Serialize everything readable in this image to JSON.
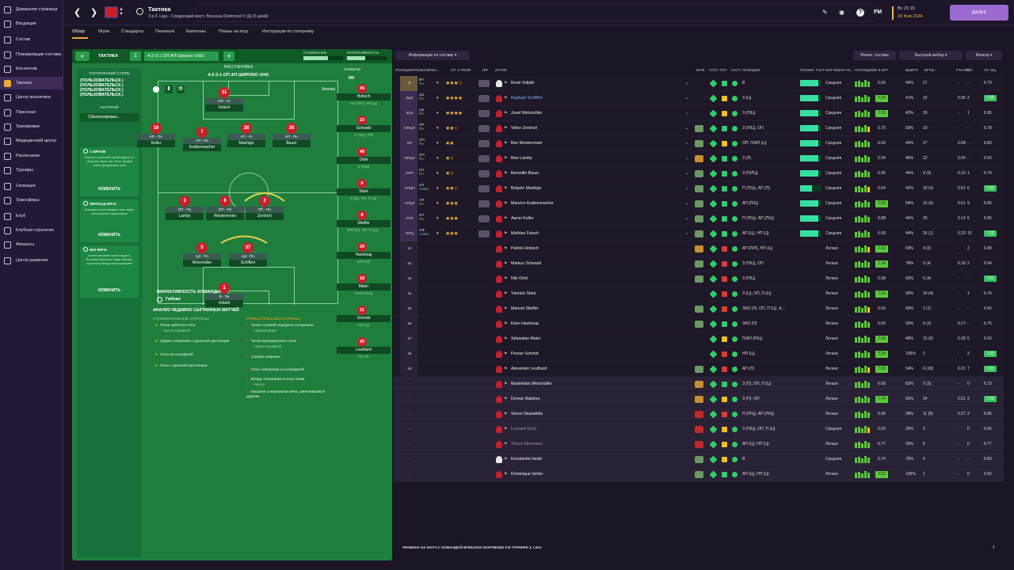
{
  "sidebar": {
    "items": [
      {
        "label": "Домашняя страница",
        "icon": "home-icon"
      },
      {
        "label": "Входящие",
        "icon": "inbox-icon"
      },
      {
        "label": "Состав",
        "icon": "squad-icon"
      },
      {
        "label": "Планировщик состава",
        "icon": "planner-icon"
      },
      {
        "label": "Коллектив",
        "icon": "dynamics-icon"
      },
      {
        "label": "Тактика",
        "icon": "tactics-icon"
      },
      {
        "label": "Центр аналитики",
        "icon": "analytics-icon"
      },
      {
        "label": "Персонал",
        "icon": "staff-icon"
      },
      {
        "label": "Тренировки",
        "icon": "training-icon"
      },
      {
        "label": "Медицинский центр",
        "icon": "medical-icon"
      },
      {
        "label": "Расписание",
        "icon": "schedule-icon"
      },
      {
        "label": "Турниры",
        "icon": "competitions-icon"
      },
      {
        "label": "Селекция",
        "icon": "scouting-icon"
      },
      {
        "label": "Трансферы",
        "icon": "transfers-icon"
      },
      {
        "label": "Клуб",
        "icon": "club-icon"
      },
      {
        "label": "Клубная стратегия",
        "icon": "strategy-icon"
      },
      {
        "label": "Финансы",
        "icon": "finances-icon"
      },
      {
        "label": "Центр развития",
        "icon": "development-icon"
      }
    ]
  },
  "topbar": {
    "title": "Тактика",
    "subtitle": "3 в 3. Liga - Следующий матч: Borussia Dortmund II (Д) (6 дней)",
    "time": "Вс 21:15",
    "date": "18 Фев 2024",
    "continue_label": "ДАЛЕЕ",
    "fm_label": "FM",
    "help_label": "?"
  },
  "subtabs": [
    "Обзор",
    "Игрок",
    "Стандарты",
    "Пенальти",
    "Капитаны",
    "Планы на игру",
    "Инструкции по сопернику"
  ],
  "tactic": {
    "tab_label": "ТАКТИКА",
    "slot": "1",
    "formation": "4-2-3-1 ОП АП Широко UHG",
    "understanding_label": "ПОНИМАНИЕ",
    "intensity_label": "ИНТЕНСИВНОСТЬ",
    "understanding_value": 0.62,
    "intensity_value": 0.45,
    "style_title": "ТАКТИЧЕСКИЙ СТИЛЬ",
    "style_value": "(ПОЛЬЗОВАТЕЛЬСК.) (ПОЛЬЗОВАТЕЛЬСК.) (ПОЛЬЗОВАТЕЛЬСК.) (ПОЛЬЗОВАТЕЛЬСК.)",
    "mentality_title": "НАСТРОЙ",
    "mentality_value": "Сбалансирован...",
    "cards": [
      {
        "title": "С МЯЧОМ",
        "text": "Играть в короткий пас Выходить из обороны через пас Темп: низкий тонее Дисциплины узко",
        "button": "ИЗМЕНИТЬ"
      },
      {
        "title": "ПЕРЕХОД МЯЧА",
        "text": "Выжидать игры Вводить мяч через центральных защитников",
        "button": "ИЗМЕНИТЬ"
      },
      {
        "title": "БЕЗ МЯЧА",
        "text": "Более высокая линия защиты Высокий Прессинг Чаще Мешать короткому вводу мяча вратарём",
        "button": "ИЗМЕНИТЬ"
      }
    ],
    "pitch_header": "РАССТАНОВКА",
    "pitch_formation": "4-2-3-1 ОП АП ШИРОКО UHG",
    "analysis_label": "Анализ",
    "fluidity_label": "ВАРИАТИВНОСТЬ КОМАНДЫ",
    "fluidity_value": "Гибкая",
    "recent_label": "АНАЛИЗ НЕДАВНО СЫГРАННЫХ МАТЧЕЙ",
    "positives_title": "ПОЛОЖИТЕЛЬНЫЕ СТОРОНЫ",
    "negatives_title": "ОТРИЦАТЕЛЬНЫЕ СТОРОНЫ",
    "positives": [
      {
        "text": "Точка забитого гола",
        "sub": "- Центр штрафной"
      },
      {
        "text": "Удары соперника с дальней дистанции",
        "sub": ""
      },
      {
        "text": "Голы из штрафной",
        "sub": ""
      },
      {
        "text": "Голы с дальней дистанции",
        "sub": ""
      }
    ],
    "negatives": [
      {
        "text": "Точка голевой передачи соперника",
        "sub": "- Правый фланг"
      },
      {
        "text": "Точка пропущенного гола",
        "sub": "- Центр штрафной"
      },
      {
        "text": "Слабое влияние",
        "sub": ""
      },
      {
        "text": "Голы соперника из штрафной",
        "sub": ""
      },
      {
        "text": "Входы соперника в зону атаки",
        "sub": "- Центр"
      },
      {
        "text": "Касания соперником мяча, увенчавшиеся ударом",
        "sub": ""
      }
    ],
    "pitch_players": [
      {
        "num": "11",
        "role": "ОФ - Ат",
        "name": "Fetsch"
      },
      {
        "num": "16",
        "role": "КП - Пн",
        "name": "Keller"
      },
      {
        "num": "7",
        "role": "АП - Пн",
        "name": "Krattenmacher"
      },
      {
        "num": "38",
        "role": "АП - Ат",
        "name": "Mashigo"
      },
      {
        "num": "26",
        "role": "КП - Пн",
        "name": "Bauer"
      },
      {
        "num": "3",
        "role": "ОП - Пн",
        "name": "Lamby"
      },
      {
        "num": "6",
        "role": "ОП - Пн",
        "name": "Westermeier"
      },
      {
        "num": "2",
        "role": "ПР - Пн",
        "name": "Zentrich"
      },
      {
        "num": "5",
        "role": "ЦЗ - Пн",
        "name": "Welzmüller"
      },
      {
        "num": "37",
        "role": "ЦЗ - Пн",
        "name": "Schiffert"
      },
      {
        "num": "1",
        "role": "В - Пн",
        "name": "Vollath"
      }
    ],
    "subs_title": "ЗАМЕНЫ",
    "subs_count": "9/9",
    "subs": [
      {
        "num": "34",
        "name": "Hobsch",
        "role": "АП (Л/П), НП (Ц)"
      },
      {
        "num": "23",
        "name": "Schwabl",
        "role": "З (П/Ц), ОП"
      },
      {
        "num": "49",
        "name": "Ortel",
        "role": "З (П/Ц)"
      },
      {
        "num": "9",
        "name": "Stark",
        "role": "З (Ц), ОП, П (Ц)"
      },
      {
        "num": "8",
        "name": "Stiefler",
        "role": "З/КЗ (Л), ОП, П (Ц)..."
      },
      {
        "num": "29",
        "name": "Haxhosaj",
        "role": "З/КЗ (П)"
      },
      {
        "num": "18",
        "name": "Maier",
        "role": "П/АП (П/Ц)"
      },
      {
        "num": "31",
        "name": "Schmid",
        "role": "НП (Ц)"
      },
      {
        "num": "20",
        "name": "Leuthard",
        "role": "АП (Л)"
      }
    ]
  },
  "right": {
    "info_label": "Информация по составу",
    "recommend_label": "Реком. состава",
    "quick_label": "Быстрый выбор",
    "filter_label": "Фильтр",
    "headers": [
      "ПОЗИЦИЯ/РОЛЬ/ОБЯЗА...",
      "СП. К РОЛИ",
      "ИФ",
      "ИГРОК",
      "ИНФ.",
      "СОСТ",
      "ГОТ.",
      "НАСТ.",
      "ПОЗИЦИИ",
      "ПОНИМ. ТАКТ.",
      "МАТЧЕВАЯ НА...",
      "ПОСЛЕДНИЕ 5 ИГР",
      "ВЫИГР.",
      "ИГРЫ",
      "ГПАС/М",
      "ГОЛ",
      "СР. ОЦ."
    ],
    "footer": "ПРАВИЛА НА МАТЧ С КОМАНДОЙ BORUSSIA DORTMUND II В ТУРНИРЕ 3. LIGA",
    "players": [
      {
        "slot": "В",
        "role": "ВЧ",
        "duty": "Пн",
        "stars": 3.5,
        "name": "René Vollath",
        "gk": true,
        "form": "",
        "cond": "green",
        "positions": "В",
        "match": "Средняя",
        "rating": "6.66",
        "win": "44%",
        "games": "27",
        "ast": "-",
        "gls": "-",
        "avg": "6.79",
        "tact": 0.85,
        "hi": false
      },
      {
        "slot": "ЗЦП",
        "role": "ЦЗ",
        "duty": "Пн",
        "stars": 4,
        "name": "Raphael Schifferl",
        "gk": false,
        "form": "",
        "cond": "amber",
        "positions": "З (Ц)",
        "match": "Средняя",
        "rating": "7.24",
        "win": "41%",
        "games": "22",
        "ast": "0.05",
        "gls": "2",
        "avg": "7.06",
        "tact": 0.85,
        "hi": true
      },
      {
        "slot": "ЗЦЛ",
        "role": "ЦЗ",
        "duty": "Пн",
        "stars": 4,
        "name": "Josef Welzmüller",
        "gk": false,
        "form": "",
        "cond": "amber",
        "positions": "З (П/Ц)",
        "match": "Средняя",
        "rating": "7.05",
        "win": "42%",
        "games": "26",
        "ast": "-",
        "gls": "1",
        "avg": "6.95",
        "tact": 0.85,
        "hi": false
      },
      {
        "slot": "ОПЦП",
        "role": "ПР",
        "duty": "Пн",
        "stars": 2.5,
        "name": "Viktor Zentrich",
        "gk": false,
        "form": "ok",
        "cond": "green",
        "positions": "З (П/Ц), ОП",
        "match": "Средняя",
        "rating": "6.75",
        "win": "50%",
        "games": "10",
        "ast": "-",
        "gls": "-",
        "avg": "6.78",
        "tact": 0.85,
        "hi": false
      },
      {
        "slot": "ОП",
        "role": "ОП",
        "duty": "Пн",
        "stars": 2,
        "name": "Ben Westermeier",
        "gk": false,
        "form": "ok",
        "cond": "amber",
        "positions": "ОП, П/АП (Ц)",
        "match": "Средняя",
        "rating": "6.92",
        "win": "44%",
        "games": "27",
        "ast": "0.08",
        "gls": "-",
        "avg": "6.83",
        "tact": 0.85,
        "hi": false
      },
      {
        "slot": "ОПЦЛ",
        "role": "ОП",
        "duty": "Пн",
        "stars": 1.5,
        "name": "Max Lamby",
        "gk": false,
        "form": "low",
        "cond": "green",
        "positions": "З (Л)",
        "match": "Средняя",
        "rating": "6.94",
        "win": "45%",
        "games": "22",
        "ast": "0.05",
        "gls": "-",
        "avg": "6.93",
        "tact": 0.85,
        "hi": false
      },
      {
        "slot": "АПП",
        "role": "КП",
        "duty": "Пн",
        "stars": 1.5,
        "name": "Benedikt Bauer",
        "gk": false,
        "form": "ok",
        "cond": "green",
        "positions": "З (П/ЛЦ)",
        "match": "Средняя",
        "rating": "6.96",
        "win": "44%",
        "games": "9 (9)",
        "ast": "0.10",
        "gls": "1",
        "avg": "6.74",
        "tact": 0.85,
        "hi": false
      },
      {
        "slot": "АПЦП",
        "role": "АП",
        "duty": "Атака",
        "stars": 2.5,
        "name": "Boipelo Mashigo",
        "gk": false,
        "form": "ok",
        "cond": "green",
        "positions": "П (П/Ц), АП (П)",
        "match": "Средняя",
        "rating": "6.64",
        "win": "43%",
        "games": "19 (4)",
        "ast": "0.51",
        "gls": "6",
        "avg": "7.02",
        "tact": 0.55,
        "hi": false
      },
      {
        "slot": "АПЦЛ",
        "role": "АП",
        "duty": "Пн",
        "stars": 3,
        "name": "Maurice Krattenmacher",
        "gk": false,
        "form": "ok",
        "cond": "green",
        "positions": "АП (П/Ц)",
        "match": "Средняя",
        "rating": "7.03",
        "win": "54%",
        "games": "15 (9)",
        "ast": "0.51",
        "gls": "9",
        "avg": "6.86",
        "tact": 0.85,
        "hi": false
      },
      {
        "slot": "АПЛ",
        "role": "КП",
        "duty": "Пн",
        "stars": 3,
        "name": "Aaron Keller",
        "gk": false,
        "form": "ok",
        "cond": "green",
        "positions": "П (П/Ц), АП (П/Ц)",
        "match": "Средняя",
        "rating": "6.88",
        "win": "44%",
        "games": "25",
        "ast": "0.14",
        "gls": "5",
        "avg": "6.85",
        "tact": 0.85,
        "hi": false
      },
      {
        "slot": "НПЦ",
        "role": "ОФ",
        "duty": "Атака",
        "stars": 3,
        "name": "Mathias Fetsch",
        "gk": false,
        "form": "ok",
        "cond": "green",
        "positions": "АП (Ц), НП (Ц)",
        "match": "Средняя",
        "rating": "6.90",
        "win": "44%",
        "games": "26 (1)",
        "ast": "0.23",
        "gls": "15",
        "avg": "7.23",
        "tact": 0.85,
        "hi": false
      },
      {
        "slot": "s1",
        "role": "",
        "duty": "",
        "stars": 0,
        "name": "Patrick Hobsch",
        "gk": false,
        "form": "low",
        "cond": "red",
        "positions": "АП (П/Л), НП (Ц)",
        "match": "Легкая",
        "rating": "7.32",
        "win": "50%",
        "games": "4 (2)",
        "ast": "-",
        "gls": "2",
        "avg": "6.98",
        "tact": 0,
        "hi": false
      },
      {
        "slot": "s2",
        "role": "",
        "duty": "",
        "stars": 0,
        "name": "Markus Schwabl",
        "gk": false,
        "form": "ok",
        "cond": "red",
        "positions": "З (П/Ц), ОП",
        "match": "Легкая",
        "rating": "7.24",
        "win": "78%",
        "games": "5 (4)",
        "ast": "0.18",
        "gls": "2",
        "avg": "6.94",
        "tact": 0,
        "hi": false
      },
      {
        "slot": "s3",
        "role": "",
        "duty": "",
        "stars": 0,
        "name": "Nils Ortel",
        "gk": false,
        "form": "ok",
        "cond": "red",
        "positions": "З (П/Ц)",
        "match": "Легкая",
        "rating": "6.98",
        "win": "63%",
        "games": "5 (4)",
        "ast": "-",
        "gls": "-",
        "avg": "7.01",
        "tact": 0,
        "hi": false
      },
      {
        "slot": "s4",
        "role": "",
        "duty": "",
        "stars": 0,
        "name": "Yannick Stark",
        "gk": false,
        "form": "",
        "cond": "red",
        "positions": "З (Ц), ОП, П (Ц)",
        "match": "Легкая",
        "rating": "7.10",
        "win": "50%",
        "games": "16 (4)",
        "ast": "-",
        "gls": "1",
        "avg": "6.76",
        "tact": 0,
        "hi": false
      },
      {
        "slot": "s5",
        "role": "",
        "duty": "",
        "stars": 0,
        "name": "Manuel Stiefler",
        "gk": false,
        "form": "ok",
        "cond": "red",
        "positions": "З/КЗ (Л), ОП, П (Ц), А...",
        "match": "Легкая",
        "rating": "6.65",
        "win": "50%",
        "games": "1 (1)",
        "ast": "-",
        "gls": "-",
        "avg": "6.60",
        "tact": 0,
        "hi": false
      },
      {
        "slot": "s6",
        "role": "",
        "duty": "",
        "stars": 0,
        "name": "Elion Haxhosaj",
        "gk": false,
        "form": "ok",
        "cond": "green",
        "positions": "З/КЗ (П)",
        "match": "Легкая",
        "rating": "6.65",
        "win": "50%",
        "games": "5 (3)",
        "ast": "0.17",
        "gls": "-",
        "avg": "6.75",
        "tact": 0,
        "hi": false
      },
      {
        "slot": "s7",
        "role": "",
        "duty": "",
        "stars": 0,
        "name": "Sebastian Maier",
        "gk": false,
        "form": "",
        "cond": "amber",
        "positions": "П/АП (П/Ц)",
        "match": "Легкая",
        "rating": "7.06",
        "win": "48%",
        "games": "15 (6)",
        "ast": "0.28",
        "gls": "5",
        "avg": "6.93",
        "tact": 0,
        "hi": false
      },
      {
        "slot": "s8",
        "role": "",
        "duty": "",
        "stars": 0,
        "name": "Florian Schmid",
        "gk": false,
        "form": "",
        "cond": "red",
        "positions": "НП (Ц)",
        "match": "Легкая",
        "rating": "7.30",
        "win": "100%",
        "games": "2",
        "ast": "-",
        "gls": "2",
        "avg": "7.02",
        "tact": 0,
        "hi": false
      },
      {
        "slot": "s9",
        "role": "",
        "duty": "",
        "stars": 0,
        "name": "Alexander Leuthard",
        "gk": false,
        "form": "ok",
        "cond": "red",
        "positions": "АП (Л)",
        "match": "Легкая",
        "rating": "7.00",
        "win": "54%",
        "games": "6 (18)",
        "ast": "0.21",
        "gls": "7",
        "avg": "7.01",
        "tact": 0,
        "hi": false
      },
      {
        "slot": "-",
        "role": "",
        "duty": "",
        "stars": 0,
        "name": "Maximilian Welzmüller",
        "gk": false,
        "form": "low",
        "cond": "green",
        "positions": "З (П), ОП, П (Ц)",
        "match": "Легкая",
        "rating": "6.68",
        "win": "63%",
        "games": "5 (3)",
        "ast": "-",
        "gls": "0",
        "avg": "6.73",
        "tact": 0,
        "hi": false
      },
      {
        "slot": "-",
        "role": "",
        "duty": "",
        "stars": 0,
        "name": "Dennis Waidner",
        "gk": false,
        "form": "low",
        "cond": "amber",
        "positions": "З (П), ОП",
        "match": "Легкая",
        "rating": "7.74",
        "win": "50%",
        "games": "24",
        "ast": "0.51",
        "gls": "2",
        "avg": "7.22",
        "tact": 0,
        "hi": false
      },
      {
        "slot": "-",
        "role": "",
        "duty": "",
        "stars": 0,
        "name": "Simon Skarlatidis",
        "gk": false,
        "form": "bad",
        "cond": "red",
        "positions": "П (П/Ц), АП (П/Ц)",
        "match": "Легкая",
        "rating": "6.96",
        "win": "58%",
        "games": "11 (8)",
        "ast": "0.27",
        "gls": "2",
        "avg": "6.85",
        "tact": 0,
        "hi": false
      },
      {
        "slot": "-",
        "role": "",
        "duty": "",
        "stars": 0,
        "name": "Leonard Grob",
        "gk": false,
        "form": "bad",
        "cond": "amber",
        "positions": "З (П/Ц), ОП, П (Ц)",
        "match": "Средняя",
        "rating": "6.50",
        "win": "33%",
        "games": "3",
        "ast": "-",
        "gls": "0",
        "avg": "6.50",
        "tact": 0,
        "hi": false,
        "dim": true
      },
      {
        "slot": "-",
        "role": "",
        "duty": "",
        "stars": 0,
        "name": "Timon Obermeier",
        "gk": false,
        "form": "bad",
        "cond": "amber",
        "positions": "АП (Ц), НП (Ц)",
        "match": "Легкая",
        "rating": "6.77",
        "win": "33%",
        "games": "6",
        "ast": "-",
        "gls": "0",
        "avg": "6.77",
        "tact": 0,
        "hi": false,
        "dim": true
      },
      {
        "slot": "-",
        "role": "",
        "duty": "",
        "stars": 0,
        "name": "Konstantin Heide",
        "gk": true,
        "form": "ok",
        "cond": "amber",
        "positions": "В",
        "match": "Средняя",
        "rating": "6.74",
        "win": "75%",
        "games": "4",
        "ast": "-",
        "gls": "-",
        "avg": "6.83",
        "tact": 0,
        "hi": false
      },
      {
        "slot": "-",
        "role": "",
        "duty": "",
        "stars": 0,
        "name": "Dominique Girtler",
        "gk": false,
        "form": "ok",
        "cond": "green",
        "positions": "АП (Ц), НП (Ц)",
        "match": "Легкая",
        "rating": "7.02",
        "win": "100%",
        "games": "1",
        "ast": "-",
        "gls": "0",
        "avg": "6.50",
        "tact": 0,
        "hi": false
      }
    ]
  }
}
